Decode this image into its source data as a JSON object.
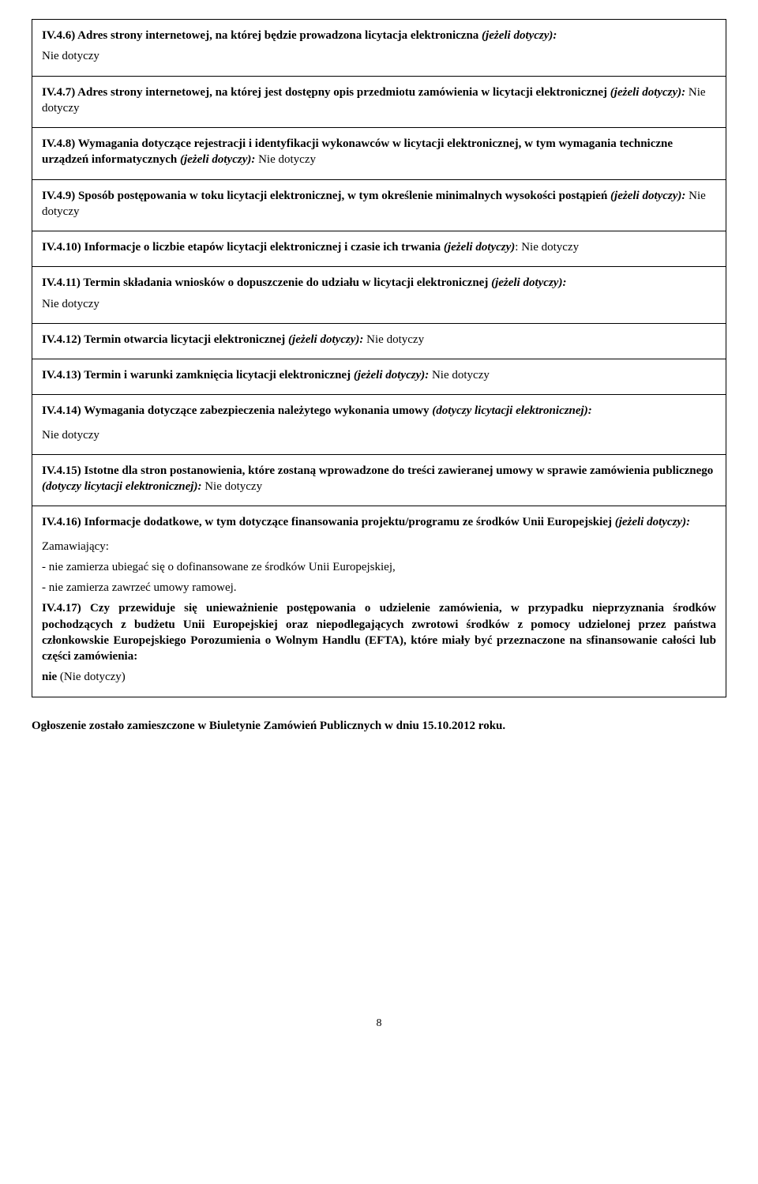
{
  "rows": [
    {
      "lines": [
        {
          "segments": [
            {
              "t": "IV.4.6) Adres strony internetowej, na której będzie prowadzona licytacja elektroniczna ",
              "cls": "b"
            },
            {
              "t": "(jeżeli dotyczy):",
              "cls": "bi"
            }
          ]
        },
        {
          "segments": [
            {
              "t": "Nie dotyczy",
              "cls": ""
            }
          ]
        }
      ]
    },
    {
      "lines": [
        {
          "segments": [
            {
              "t": "IV.4.7) Adres strony internetowej, na której jest dostępny opis przedmiotu zamówienia w licytacji elektronicznej ",
              "cls": "b"
            },
            {
              "t": "(jeżeli dotyczy): ",
              "cls": "bi"
            },
            {
              "t": "Nie dotyczy",
              "cls": ""
            }
          ]
        }
      ]
    },
    {
      "lines": [
        {
          "segments": [
            {
              "t": "IV.4.8) Wymagania dotyczące rejestracji i identyfikacji wykonawców w licytacji elektronicznej, w tym wymagania techniczne urządzeń informatycznych ",
              "cls": "b"
            },
            {
              "t": "(jeżeli dotyczy): ",
              "cls": "bi"
            },
            {
              "t": "Nie dotyczy",
              "cls": ""
            }
          ]
        }
      ]
    },
    {
      "lines": [
        {
          "segments": [
            {
              "t": "IV.4.9) Sposób postępowania w toku licytacji elektronicznej, w tym określenie minimalnych wysokości postąpień ",
              "cls": "b"
            },
            {
              "t": "(jeżeli dotyczy): ",
              "cls": "bi"
            },
            {
              "t": "Nie dotyczy",
              "cls": ""
            }
          ]
        }
      ]
    },
    {
      "lines": [
        {
          "segments": [
            {
              "t": "IV.4.10) Informacje o liczbie etapów licytacji elektronicznej i czasie ich trwania ",
              "cls": "b"
            },
            {
              "t": "(jeżeli dotyczy)",
              "cls": "bi"
            },
            {
              "t": ": Nie dotyczy",
              "cls": ""
            }
          ]
        }
      ]
    },
    {
      "lines": [
        {
          "segments": [
            {
              "t": "IV.4.11) Termin składania wniosków o dopuszczenie do udziału  w licytacji elektronicznej ",
              "cls": "b"
            },
            {
              "t": "(jeżeli dotyczy):",
              "cls": "bi"
            }
          ]
        },
        {
          "segments": [
            {
              "t": "Nie dotyczy",
              "cls": ""
            }
          ]
        }
      ]
    },
    {
      "lines": [
        {
          "segments": [
            {
              "t": "IV.4.12) Termin otwarcia licytacji elektronicznej ",
              "cls": "b"
            },
            {
              "t": "(jeżeli dotyczy): ",
              "cls": "bi"
            },
            {
              "t": "Nie dotyczy",
              "cls": ""
            }
          ]
        }
      ]
    },
    {
      "lines": [
        {
          "segments": [
            {
              "t": "IV.4.13) Termin i warunki zamknięcia licytacji elektronicznej ",
              "cls": "b"
            },
            {
              "t": "(jeżeli dotyczy): ",
              "cls": "bi"
            },
            {
              "t": "Nie dotyczy",
              "cls": ""
            }
          ]
        }
      ]
    },
    {
      "lines": [
        {
          "segments": [
            {
              "t": "IV.4.14) Wymagania dotyczące zabezpieczenia należytego wykonania umowy ",
              "cls": "b"
            },
            {
              "t": "(dotyczy licytacji elektronicznej):",
              "cls": "bi"
            }
          ]
        },
        {
          "segments": [
            {
              "t": "Nie dotyczy",
              "cls": ""
            }
          ],
          "mt": true
        }
      ]
    },
    {
      "lines": [
        {
          "segments": [
            {
              "t": "IV.4.15) Istotne dla stron postanowienia, które zostaną wprowadzone do treści zawieranej umowy w sprawie zamówienia publicznego ",
              "cls": "b"
            },
            {
              "t": "(dotyczy licytacji elektronicznej): ",
              "cls": "bi"
            },
            {
              "t": "Nie dotyczy",
              "cls": ""
            }
          ]
        }
      ]
    },
    {
      "lines": [
        {
          "segments": [
            {
              "t": "IV.4.16) Informacje dodatkowe, w tym dotyczące finansowania projektu/programu ze środków Unii Europejskiej ",
              "cls": "b"
            },
            {
              "t": " (jeżeli dotyczy):",
              "cls": "bi"
            }
          ]
        },
        {
          "segments": [
            {
              "t": "Zamawiający:",
              "cls": ""
            }
          ],
          "mt": true
        },
        {
          "segments": [
            {
              "t": "-  nie zamierza ubiegać się o dofinansowane ze środków Unii Europejskiej,",
              "cls": ""
            }
          ]
        },
        {
          "segments": [
            {
              "t": "-  nie zamierza zawrzeć umowy ramowej.",
              "cls": ""
            }
          ]
        },
        {
          "justify": true,
          "segments": [
            {
              "t": " IV.4.17) Czy przewiduje się unieważnienie postępowania o udzielenie zamówienia, w przypadku nieprzyznania środków pochodzących z budżetu Unii Europejskiej oraz niepodlegających zwrotowi środków z pomocy udzielonej przez państwa członkowskie Europejskiego Porozumienia o Wolnym Handlu (EFTA), które miały być przeznaczone na sfinansowanie całości lub części zamówienia:",
              "cls": "b"
            }
          ]
        },
        {
          "segments": [
            {
              "t": "nie",
              "cls": "b"
            },
            {
              "t": "  (Nie dotyczy)",
              "cls": ""
            }
          ]
        }
      ]
    }
  ],
  "footer": "Ogłoszenie zostało zamieszczone w Biuletynie Zamówień Publicznych w dniu 15.10.2012 roku.",
  "pageNumber": "8"
}
